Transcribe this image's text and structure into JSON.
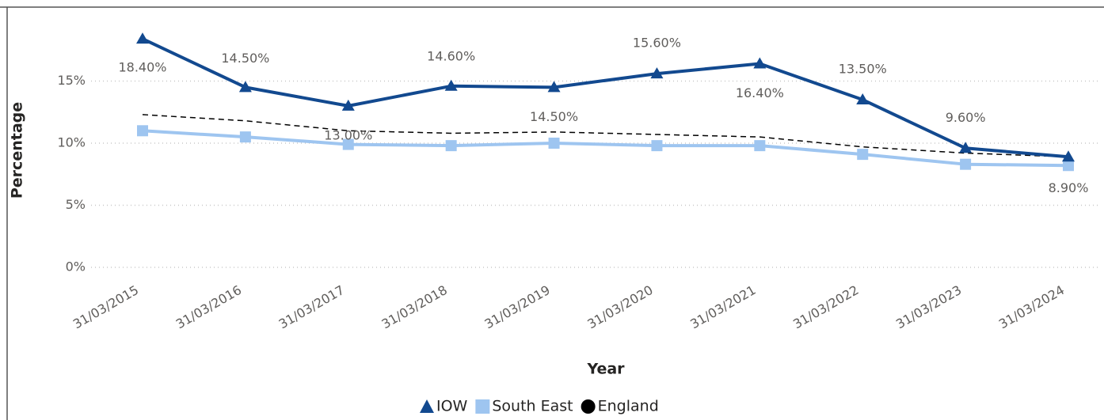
{
  "chart_data": {
    "type": "line",
    "x_label": "Year",
    "y_label": "Percentage",
    "categories": [
      "31/03/2015",
      "31/03/2016",
      "31/03/2017",
      "31/03/2018",
      "31/03/2019",
      "31/03/2020",
      "31/03/2021",
      "31/03/2022",
      "31/03/2023",
      "31/03/2024"
    ],
    "series": [
      {
        "name": "IOW",
        "color": "#12498f",
        "marker": "triangle",
        "values": [
          18.4,
          14.5,
          13.0,
          14.6,
          14.5,
          15.6,
          16.4,
          13.5,
          9.6,
          8.9
        ],
        "value_labels": [
          "18.40%",
          "14.50%",
          "13.00%",
          "14.60%",
          "14.50%",
          "15.60%",
          "16.40%",
          "13.50%",
          "9.60%",
          "8.90%"
        ]
      },
      {
        "name": "South East",
        "color": "#9ec5f0",
        "marker": "square",
        "values": [
          11.0,
          10.5,
          9.9,
          9.8,
          10.0,
          9.8,
          9.8,
          9.1,
          8.3,
          8.2
        ]
      },
      {
        "name": "England",
        "color": "#000000",
        "marker": "circle",
        "dashed": true,
        "values": [
          12.3,
          11.8,
          11.0,
          10.8,
          10.9,
          10.7,
          10.5,
          9.7,
          9.2,
          8.9
        ]
      }
    ],
    "ylim": [
      0,
      20
    ],
    "yticks": [
      {
        "value": 0,
        "label": "0%"
      },
      {
        "value": 5,
        "label": "5%"
      },
      {
        "value": 10,
        "label": "10%"
      },
      {
        "value": 15,
        "label": "15%"
      }
    ],
    "grid": true,
    "legend": "bottom"
  }
}
